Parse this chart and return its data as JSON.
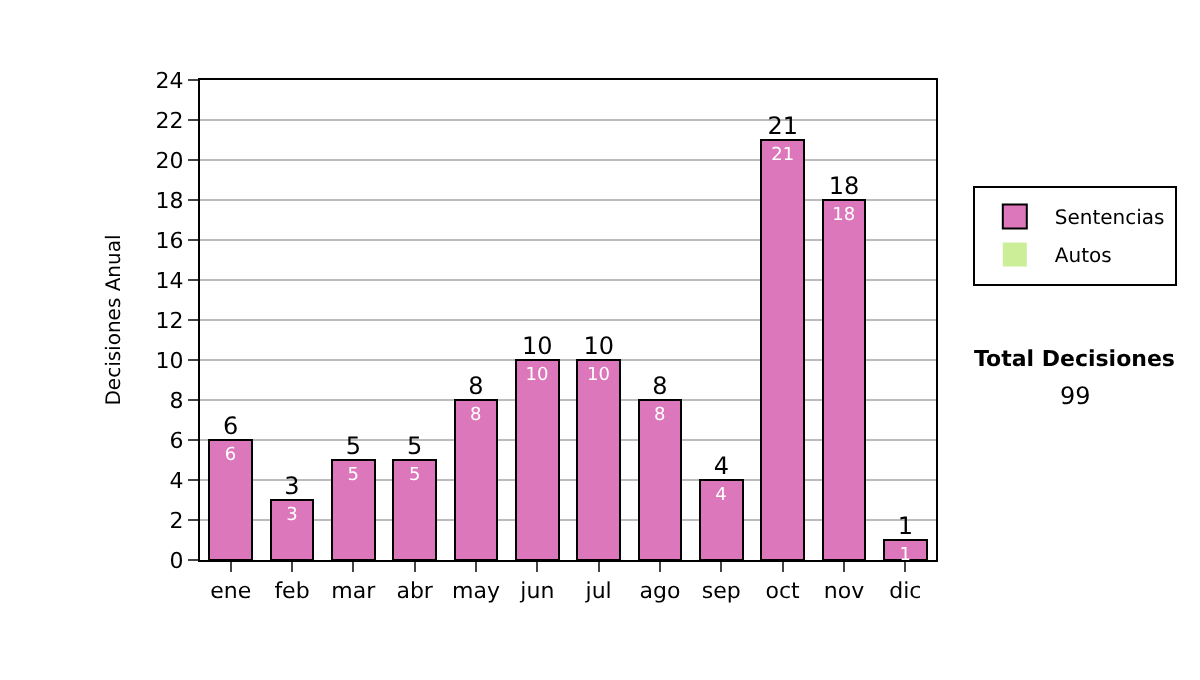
{
  "chart_data": {
    "type": "bar",
    "ylabel": "Decisiones Anual",
    "categories": [
      "ene",
      "feb",
      "mar",
      "abr",
      "may",
      "jun",
      "jul",
      "ago",
      "sep",
      "oct",
      "nov",
      "dic"
    ],
    "series": [
      {
        "name": "Sentencias",
        "color": "#dd77bb",
        "values": [
          6,
          3,
          5,
          5,
          8,
          10,
          10,
          8,
          4,
          21,
          18,
          1
        ],
        "value_labels": [
          "6",
          "3",
          "5",
          "5",
          "8",
          "10",
          "10",
          "8",
          "4",
          "21",
          "18",
          "1"
        ]
      },
      {
        "name": "Autos",
        "color": "#ccee99",
        "values": [
          0,
          0,
          0,
          0,
          0,
          0,
          0,
          0,
          0,
          0,
          0,
          0
        ]
      }
    ],
    "stacked": true,
    "totals": [
      "6",
      "3",
      "5",
      "5",
      "8",
      "10",
      "10",
      "8",
      "4",
      "21",
      "18",
      "1"
    ],
    "ylim": [
      0,
      24
    ],
    "yticks": [
      0,
      2,
      4,
      6,
      8,
      10,
      12,
      14,
      16,
      18,
      20,
      22,
      24
    ],
    "grid": "y",
    "legend": "right",
    "annotations": [
      "Total Decisiones",
      "99"
    ]
  }
}
